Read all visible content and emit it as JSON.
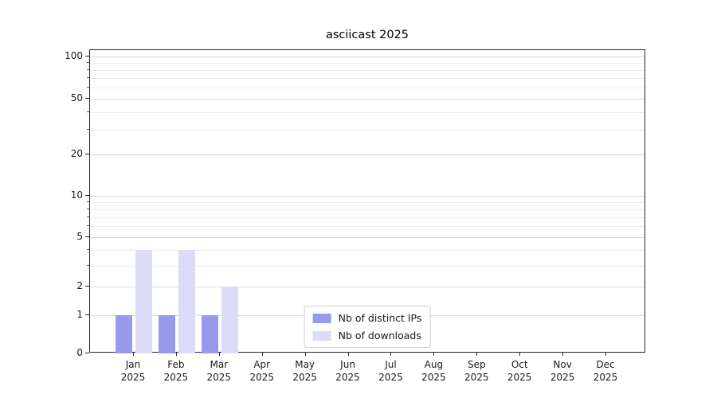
{
  "chart_data": {
    "type": "bar",
    "title": "asciicast 2025",
    "categories": [
      "Jan",
      "Feb",
      "Mar",
      "Apr",
      "May",
      "Jun",
      "Jul",
      "Aug",
      "Sep",
      "Oct",
      "Nov",
      "Dec"
    ],
    "category_year": "2025",
    "series": [
      {
        "name": "Nb of distinct IPs",
        "color": "#9999ec",
        "values": [
          1,
          1,
          1,
          0,
          0,
          0,
          0,
          0,
          0,
          0,
          0,
          0
        ]
      },
      {
        "name": "Nb of downloads",
        "color": "#dcdcf8",
        "values": [
          4,
          4,
          2,
          0,
          0,
          0,
          0,
          0,
          0,
          0,
          0,
          0
        ]
      }
    ],
    "yscale": "asinh",
    "ylim": [
      0,
      100
    ],
    "y_ticks": [
      0,
      1,
      2,
      5,
      10,
      20,
      50,
      100
    ],
    "y_minor_ticks": [
      3,
      4,
      6,
      7,
      8,
      9,
      30,
      40,
      60,
      70,
      80,
      90
    ],
    "grid": true,
    "legend_position": "lower center"
  }
}
